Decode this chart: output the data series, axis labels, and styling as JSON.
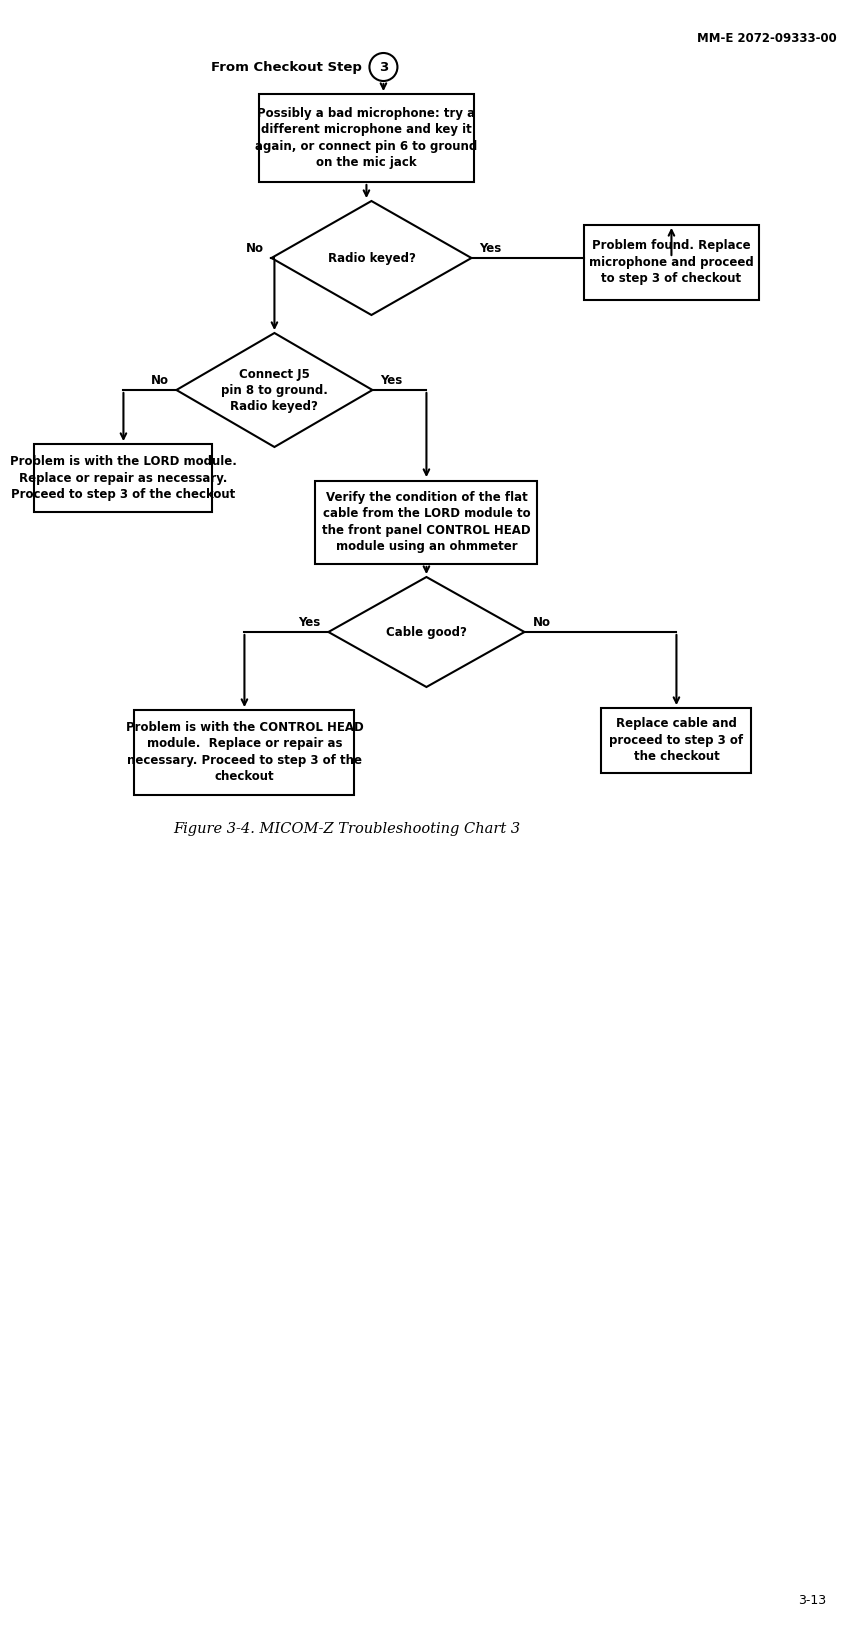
{
  "header": "MM-E 2072-09333-00",
  "page_num": "3-13",
  "figure_caption": "Figure 3-4. MICOM-Z Troubleshooting Chart 3",
  "start_label": "From Checkout Step",
  "start_circle": "3",
  "box1_text": "Possibly a bad microphone: try a\ndifferent microphone and key it\nagain, or connect pin 6 to ground\non the mic jack",
  "diamond1_text": "Radio keyed?",
  "diamond1_yes": "Yes",
  "diamond1_no": "No",
  "box_yes1_text": "Problem found. Replace\nmicrophone and proceed\nto step 3 of checkout",
  "diamond2_text": "Connect J5\npin 8 to ground.\nRadio keyed?",
  "diamond2_yes": "Yes",
  "diamond2_no": "No",
  "box_no2_text": "Problem is with the LORD module.\nReplace or repair as necessary.\nProceed to step 3 of the checkout",
  "box_verify_text": "Verify the condition of the flat\ncable from the LORD module to\nthe front panel CONTROL HEAD\nmodule using an ohmmeter",
  "diamond3_text": "Cable good?",
  "diamond3_yes": "Yes",
  "diamond3_no": "No",
  "box_ctrl_text": "Problem is with the CONTROL HEAD\nmodule.  Replace or repair as\nnecessary. Proceed to step 3 of the\ncheckout",
  "box_cable_text": "Replace cable and\nproceed to step 3 of\nthe checkout",
  "bg_color": "#ffffff",
  "line_color": "#000000",
  "text_color": "#000000"
}
